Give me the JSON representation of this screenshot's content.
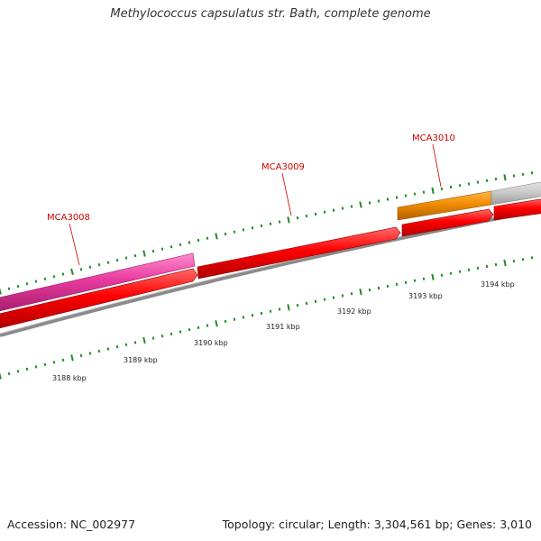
{
  "title": "Methylococcus capsulatus str. Bath, complete genome",
  "footer": {
    "accession": "Accession: NC_002977",
    "summary": "Topology: circular; Length: 3,304,561 bp; Genes: 3,010"
  },
  "genes": [
    {
      "label": "MCA3008",
      "color": "#e83a9e"
    },
    {
      "label": "MCA3009",
      "color": "#ff0000"
    },
    {
      "label": "MCA3010",
      "color": "#f08c00"
    }
  ],
  "ruler": {
    "labels": [
      "3188 kbp",
      "3189 kbp",
      "3190 kbp",
      "3191 kbp",
      "3192 kbp",
      "3193 kbp",
      "3194 kbp"
    ]
  },
  "colors": {
    "backbone": "#8a8a8a",
    "cds": "#ff0000",
    "tick": "#228b22",
    "unknown_feature": "#c8c8c8"
  }
}
